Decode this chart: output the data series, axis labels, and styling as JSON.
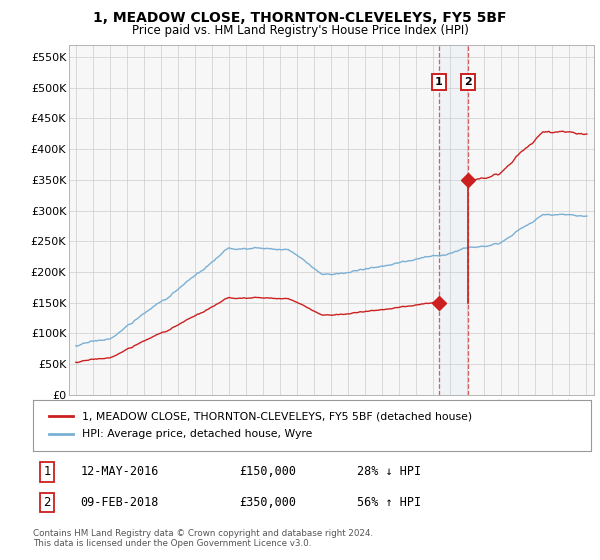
{
  "title": "1, MEADOW CLOSE, THORNTON-CLEVELEYS, FY5 5BF",
  "subtitle": "Price paid vs. HM Land Registry's House Price Index (HPI)",
  "ylabel_ticks": [
    0,
    50000,
    100000,
    150000,
    200000,
    250000,
    300000,
    350000,
    400000,
    450000,
    500000,
    550000
  ],
  "ylabel_labels": [
    "£0",
    "£50K",
    "£100K",
    "£150K",
    "£200K",
    "£250K",
    "£300K",
    "£350K",
    "£400K",
    "£450K",
    "£500K",
    "£550K"
  ],
  "xlim": [
    1994.6,
    2025.5
  ],
  "ylim": [
    0,
    570000
  ],
  "x_ticks": [
    1995,
    1996,
    1997,
    1998,
    1999,
    2000,
    2001,
    2002,
    2003,
    2004,
    2005,
    2006,
    2007,
    2008,
    2009,
    2010,
    2011,
    2012,
    2013,
    2014,
    2015,
    2016,
    2017,
    2018,
    2019,
    2020,
    2021,
    2022,
    2023,
    2024,
    2025
  ],
  "hpi_color": "#7ab0d4",
  "price_color": "#cc2020",
  "vline_color": "#cc2020",
  "span_color": "#cce0f0",
  "t1": 2016.37,
  "t2": 2018.09,
  "p1": 150000,
  "p2": 350000,
  "label1": "1",
  "label2": "2",
  "date1": "12-MAY-2016",
  "date2": "09-FEB-2018",
  "price_str1": "£150,000",
  "price_str2": "£350,000",
  "pct1": "28% ↓ HPI",
  "pct2": "56% ↑ HPI",
  "legend_property": "1, MEADOW CLOSE, THORNTON-CLEVELEYS, FY5 5BF (detached house)",
  "legend_hpi": "HPI: Average price, detached house, Wyre",
  "footer1": "Contains HM Land Registry data © Crown copyright and database right 2024.",
  "footer2": "This data is licensed under the Open Government Licence v3.0.",
  "bg_color": "#ffffff",
  "plot_bg": "#f7f7f7",
  "grid_color": "#cccccc"
}
